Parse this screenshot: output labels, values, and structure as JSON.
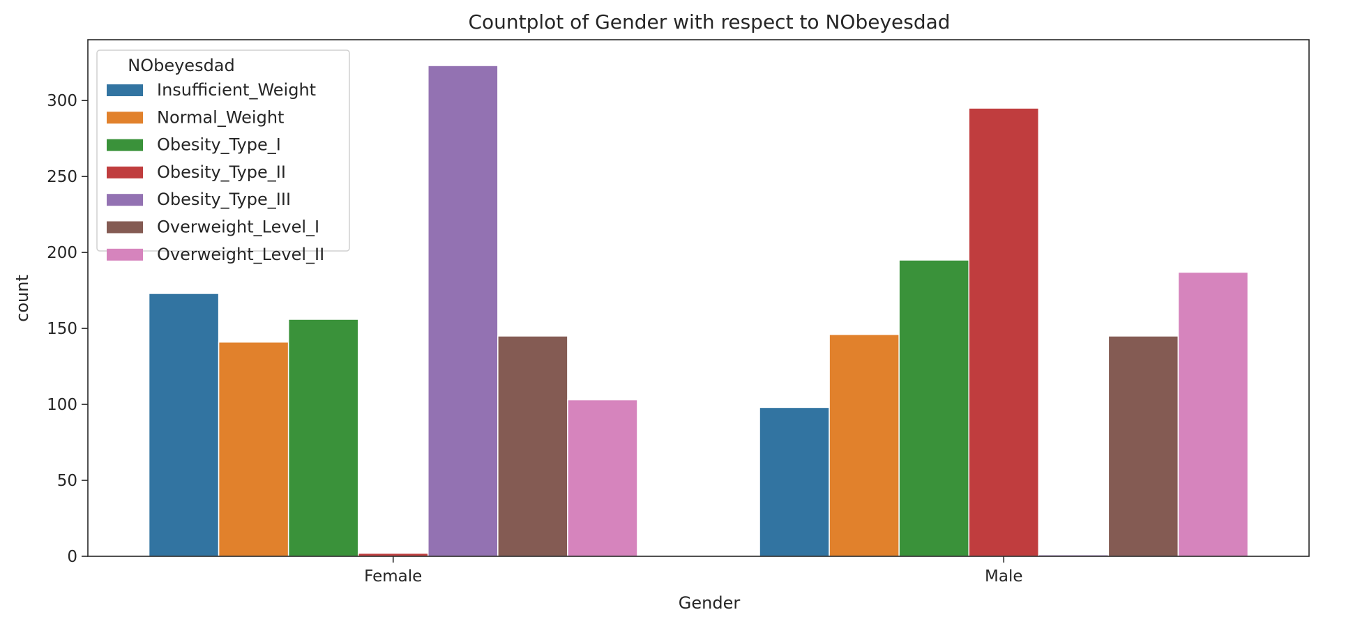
{
  "chart_data": {
    "type": "bar",
    "title": "Countplot of Gender with respect to NObeyesdad",
    "xlabel": "Gender",
    "ylabel": "count",
    "categories": [
      "Female",
      "Male"
    ],
    "ylim": [
      0,
      340
    ],
    "yticks": [
      0,
      50,
      100,
      150,
      200,
      250,
      300
    ],
    "grid": false,
    "legend": {
      "title": "NObeyesdad",
      "placement": "top-left"
    },
    "series": [
      {
        "name": "Insufficient_Weight",
        "color": "#3274a1",
        "values": [
          173,
          98
        ]
      },
      {
        "name": "Normal_Weight",
        "color": "#e1812c",
        "values": [
          141,
          146
        ]
      },
      {
        "name": "Obesity_Type_I",
        "color": "#3a923a",
        "values": [
          156,
          195
        ]
      },
      {
        "name": "Obesity_Type_II",
        "color": "#c03d3e",
        "values": [
          2,
          295
        ]
      },
      {
        "name": "Obesity_Type_III",
        "color": "#9372b2",
        "values": [
          323,
          1
        ]
      },
      {
        "name": "Overweight_Level_I",
        "color": "#845b53",
        "values": [
          145,
          145
        ]
      },
      {
        "name": "Overweight_Level_II",
        "color": "#d684bd",
        "values": [
          103,
          187
        ]
      }
    ]
  }
}
